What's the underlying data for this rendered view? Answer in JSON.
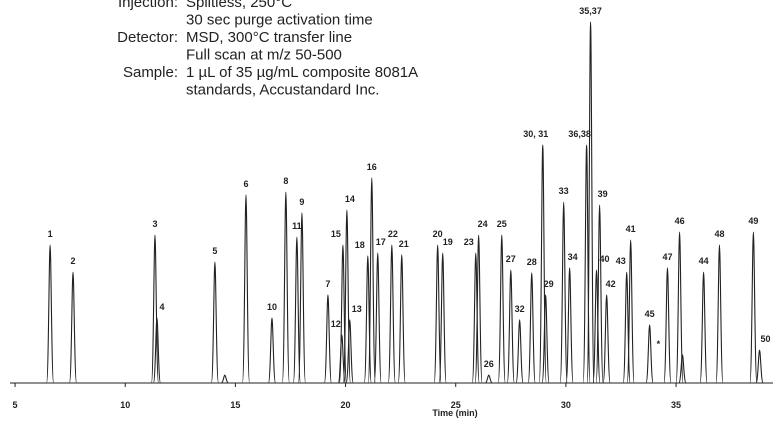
{
  "chart_data": {
    "type": "chromatogram",
    "conditions": [
      {
        "label": "Injection:",
        "lines": [
          "Splitless, 250°C",
          "30 sec purge activation time"
        ]
      },
      {
        "label": "Detector:",
        "lines": [
          "MSD, 300°C transfer line",
          "Full scan at m/z 50-500"
        ]
      },
      {
        "label": "Sample:",
        "lines": [
          "1 µL of 35 µg/mL composite 8081A",
          "standards, Accustandard Inc."
        ]
      }
    ],
    "xlabel": "Time (min)",
    "xlim": [
      4.77,
      39.4
    ],
    "ylim": [
      0,
      100
    ],
    "xticks": [
      5,
      10,
      15,
      20,
      25,
      30,
      35
    ],
    "color": "#222222",
    "categories": [
      "1",
      "2",
      "3",
      "4",
      "5",
      null,
      "6",
      "10",
      "8",
      "11",
      "9",
      "7",
      "12",
      "15",
      "14",
      "13",
      "18",
      "16",
      "17",
      "22",
      "21",
      "20",
      "19",
      "23",
      "24",
      "26",
      "25",
      "27",
      "32",
      "28",
      "30, 31",
      "29",
      "33",
      "34",
      "36,38",
      "35,37",
      "40",
      "39",
      "42",
      "43",
      "41",
      "45",
      "47",
      "46",
      "*",
      "44",
      "48",
      "49",
      "50"
    ],
    "x": [
      6.59,
      7.63,
      11.35,
      11.44,
      14.07,
      14.52,
      15.48,
      16.66,
      17.29,
      17.79,
      18.02,
      19.2,
      19.83,
      19.88,
      20.06,
      20.19,
      21.01,
      21.19,
      21.46,
      22.1,
      22.55,
      24.18,
      24.41,
      25.91,
      26.04,
      26.5,
      27.09,
      27.5,
      27.9,
      28.45,
      28.95,
      29.08,
      29.9,
      30.17,
      30.94,
      31.12,
      31.39,
      31.53,
      31.85,
      32.76,
      32.94,
      33.8,
      34.61,
      35.16,
      35.29,
      36.25,
      36.97,
      38.51,
      38.79
    ],
    "values": [
      38.2,
      30.7,
      41.0,
      18.0,
      33.5,
      2.2,
      52.1,
      18.0,
      52.9,
      40.4,
      47.1,
      24.4,
      13.3,
      38.2,
      47.9,
      17.5,
      35.2,
      56.8,
      36.0,
      38.2,
      35.5,
      38.2,
      36.0,
      36.0,
      41.0,
      2.2,
      41.0,
      31.3,
      17.5,
      30.5,
      65.9,
      24.4,
      50.1,
      31.9,
      65.9,
      100,
      31.3,
      49.3,
      24.4,
      30.7,
      39.6,
      16.1,
      31.9,
      41.8,
      7.8,
      30.7,
      38.2,
      41.8,
      9.1
    ]
  }
}
